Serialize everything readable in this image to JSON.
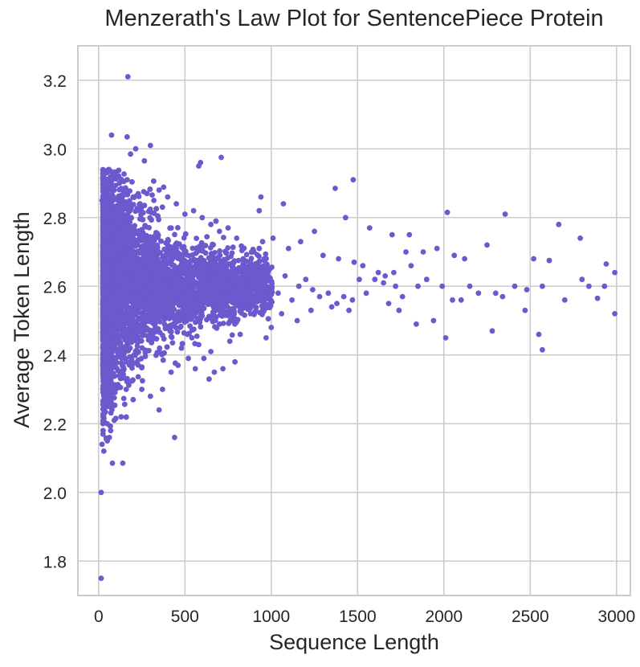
{
  "chart_data": {
    "type": "scatter",
    "title": "Menzerath's Law Plot for SentencePiece Protein",
    "xlabel": "Sequence Length",
    "ylabel": "Average Token Length",
    "xlim": [
      -120,
      3080
    ],
    "ylim": [
      1.7,
      3.3
    ],
    "x_ticks": [
      0,
      500,
      1000,
      1500,
      2000,
      2500,
      3000
    ],
    "x_tick_labels": [
      "0",
      "500",
      "1000",
      "1500",
      "2000",
      "2500",
      "3000"
    ],
    "y_ticks": [
      1.8,
      2.0,
      2.2,
      2.4,
      2.6,
      2.8,
      3.0,
      3.2
    ],
    "y_tick_labels": [
      "1.8",
      "2.0",
      "2.2",
      "2.4",
      "2.6",
      "2.8",
      "3.0",
      "3.2"
    ],
    "grid": true,
    "color": "#6a5acd",
    "series": [
      {
        "name": "SentencePiece Protein",
        "points": [
          [
            170,
            3.21
          ],
          [
            75,
            3.04
          ],
          [
            165,
            3.035
          ],
          [
            215,
            3.0
          ],
          [
            300,
            3.01
          ],
          [
            590,
            2.96
          ],
          [
            580,
            2.95
          ],
          [
            710,
            2.975
          ],
          [
            265,
            2.965
          ],
          [
            185,
            2.985
          ],
          [
            1475,
            2.91
          ],
          [
            1370,
            2.885
          ],
          [
            940,
            2.86
          ],
          [
            1070,
            2.84
          ],
          [
            930,
            2.82
          ],
          [
            2020,
            2.815
          ],
          [
            2355,
            2.81
          ],
          [
            2665,
            2.78
          ],
          [
            2790,
            2.74
          ],
          [
            1430,
            2.8
          ],
          [
            1570,
            2.77
          ],
          [
            1700,
            2.75
          ],
          [
            1800,
            2.75
          ],
          [
            1880,
            2.7
          ],
          [
            1960,
            2.71
          ],
          [
            2060,
            2.69
          ],
          [
            2120,
            2.68
          ],
          [
            2250,
            2.72
          ],
          [
            2520,
            2.68
          ],
          [
            2610,
            2.675
          ],
          [
            2940,
            2.665
          ],
          [
            2990,
            2.64
          ],
          [
            2800,
            2.62
          ],
          [
            2840,
            2.6
          ],
          [
            2930,
            2.6
          ],
          [
            2570,
            2.6
          ],
          [
            2480,
            2.59
          ],
          [
            2410,
            2.6
          ],
          [
            2300,
            2.58
          ],
          [
            2340,
            2.57
          ],
          [
            2200,
            2.58
          ],
          [
            2150,
            2.6
          ],
          [
            2100,
            2.56
          ],
          [
            2050,
            2.56
          ],
          [
            1990,
            2.6
          ],
          [
            1900,
            2.62
          ],
          [
            1850,
            2.6
          ],
          [
            1760,
            2.57
          ],
          [
            1720,
            2.6
          ],
          [
            1650,
            2.61
          ],
          [
            1600,
            2.62
          ],
          [
            1550,
            2.58
          ],
          [
            1510,
            2.62
          ],
          [
            1470,
            2.56
          ],
          [
            1420,
            2.57
          ],
          [
            1380,
            2.55
          ],
          [
            1330,
            2.58
          ],
          [
            1280,
            2.57
          ],
          [
            1240,
            2.59
          ],
          [
            1200,
            2.62
          ],
          [
            1160,
            2.6
          ],
          [
            1120,
            2.56
          ],
          [
            1080,
            2.63
          ],
          [
            1040,
            2.58
          ],
          [
            1000,
            2.6
          ],
          [
            1940,
            2.5
          ],
          [
            1840,
            2.49
          ],
          [
            2010,
            2.45
          ],
          [
            2280,
            2.47
          ],
          [
            2470,
            2.53
          ],
          [
            2550,
            2.46
          ],
          [
            2570,
            2.415
          ],
          [
            2700,
            2.56
          ],
          [
            2890,
            2.565
          ],
          [
            2990,
            2.52
          ],
          [
            1740,
            2.53
          ],
          [
            1680,
            2.55
          ],
          [
            1450,
            2.53
          ],
          [
            1350,
            2.54
          ],
          [
            1230,
            2.53
          ],
          [
            1150,
            2.5
          ],
          [
            1060,
            2.52
          ],
          [
            1000,
            2.48
          ],
          [
            970,
            2.45
          ],
          [
            880,
            2.52
          ],
          [
            820,
            2.46
          ],
          [
            790,
            2.38
          ],
          [
            760,
            2.44
          ],
          [
            700,
            2.49
          ],
          [
            650,
            2.41
          ],
          [
            610,
            2.39
          ],
          [
            560,
            2.36
          ],
          [
            520,
            2.39
          ],
          [
            480,
            2.42
          ],
          [
            420,
            2.35
          ],
          [
            370,
            2.3
          ],
          [
            350,
            2.24
          ],
          [
            300,
            2.28
          ],
          [
            250,
            2.3
          ],
          [
            200,
            2.27
          ],
          [
            160,
            2.3
          ],
          [
            130,
            2.22
          ],
          [
            90,
            2.21
          ],
          [
            70,
            2.18
          ],
          [
            50,
            2.15
          ],
          [
            30,
            2.12
          ],
          [
            25,
            2.2
          ],
          [
            20,
            2.14
          ],
          [
            80,
            2.085
          ],
          [
            140,
            2.085
          ],
          [
            440,
            2.16
          ],
          [
            15,
            2.0
          ],
          [
            15,
            1.75
          ],
          [
            640,
            2.33
          ],
          [
            670,
            2.35
          ],
          [
            720,
            2.36
          ],
          [
            580,
            2.43
          ],
          [
            540,
            2.45
          ],
          [
            460,
            2.37
          ],
          [
            850,
            2.65
          ],
          [
            900,
            2.7
          ],
          [
            950,
            2.73
          ],
          [
            1010,
            2.74
          ],
          [
            1100,
            2.71
          ],
          [
            1170,
            2.73
          ],
          [
            1250,
            2.76
          ],
          [
            1300,
            2.69
          ],
          [
            1390,
            2.68
          ],
          [
            1480,
            2.67
          ],
          [
            1530,
            2.66
          ],
          [
            1620,
            2.64
          ],
          [
            1660,
            2.63
          ],
          [
            1810,
            2.66
          ],
          [
            1780,
            2.7
          ],
          [
            1710,
            2.64
          ],
          [
            600,
            2.8
          ],
          [
            650,
            2.78
          ],
          [
            700,
            2.76
          ],
          [
            750,
            2.77
          ],
          [
            800,
            2.74
          ],
          [
            550,
            2.82
          ],
          [
            500,
            2.81
          ],
          [
            450,
            2.84
          ],
          [
            400,
            2.86
          ],
          [
            350,
            2.88
          ],
          [
            320,
            2.85
          ],
          [
            280,
            2.87
          ],
          [
            240,
            2.84
          ],
          [
            200,
            2.86
          ],
          [
            160,
            2.88
          ],
          [
            120,
            2.9
          ],
          [
            100,
            2.92
          ],
          [
            80,
            2.93
          ],
          [
            60,
            2.94
          ],
          [
            40,
            2.9
          ],
          [
            30,
            2.88
          ],
          [
            20,
            2.85
          ]
        ]
      }
    ]
  }
}
